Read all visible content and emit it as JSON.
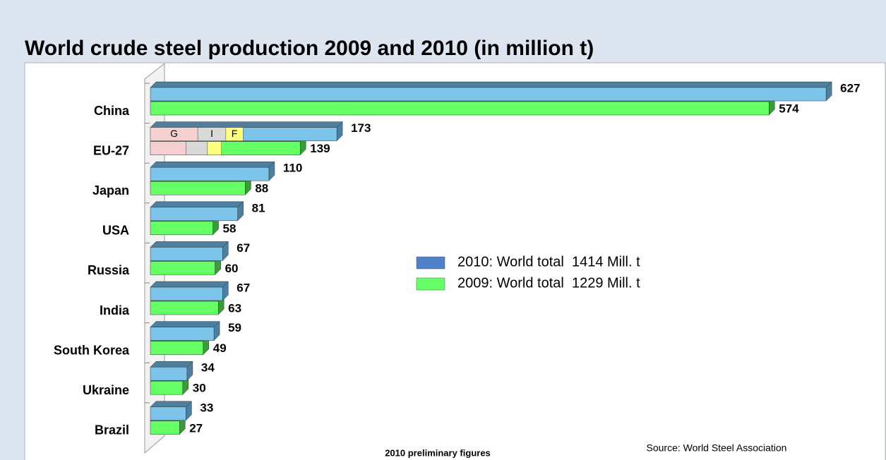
{
  "chart_data": {
    "type": "bar3d_horizontal",
    "title": "World crude steel production 2009 and 2010 (in million t)",
    "categories": [
      "China",
      "EU-27",
      "Japan",
      "USA",
      "Russia",
      "India",
      "South Korea",
      "Ukraine",
      "Brazil"
    ],
    "series": [
      {
        "name": "2010: World total  1414 Mill. t",
        "color": "#7cc4ea",
        "edge": "#4d7f9f",
        "legend_color": "#4f81c8",
        "values": [
          627,
          173,
          110,
          81,
          67,
          67,
          59,
          34,
          33
        ]
      },
      {
        "name": "2009: World total  1229 Mill. t",
        "color": "#66ff66",
        "edge": "#3c9a3c",
        "legend_color": "#66ff66",
        "values": [
          574,
          139,
          88,
          58,
          60,
          63,
          49,
          30,
          27
        ]
      }
    ],
    "eu_breakdown": [
      {
        "name": "G",
        "color": "#f6d0d0",
        "values": [
          44,
          33
        ]
      },
      {
        "name": "I",
        "color": "#d9d9d9",
        "values": [
          26,
          20
        ]
      },
      {
        "name": "F",
        "color": "#ffff80",
        "values": [
          16,
          13
        ]
      }
    ],
    "xlim": [
      0,
      640
    ],
    "note": "2010 preliminary figures",
    "source": "Source: World Steel Association"
  }
}
